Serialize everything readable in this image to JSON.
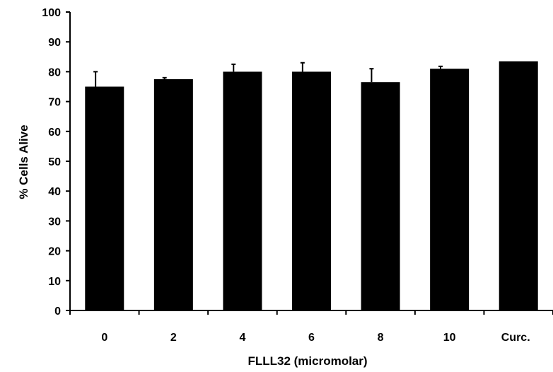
{
  "chart_data": {
    "type": "bar",
    "title": "",
    "xlabel": "FLLL32 (micromolar)",
    "ylabel": "% Cells Alive",
    "categories": [
      "0",
      "2",
      "4",
      "6",
      "8",
      "10",
      "Curc."
    ],
    "values": [
      75,
      77.5,
      80,
      80,
      76.5,
      81,
      83.5
    ],
    "error_plus": [
      5,
      0.5,
      2.5,
      3,
      4.5,
      0.8,
      0
    ],
    "ylim": [
      0,
      100
    ],
    "yticks": [
      0,
      10,
      20,
      30,
      40,
      50,
      60,
      70,
      80,
      90,
      100
    ],
    "grid": false,
    "legend": "none",
    "bar_color": "#000000"
  }
}
